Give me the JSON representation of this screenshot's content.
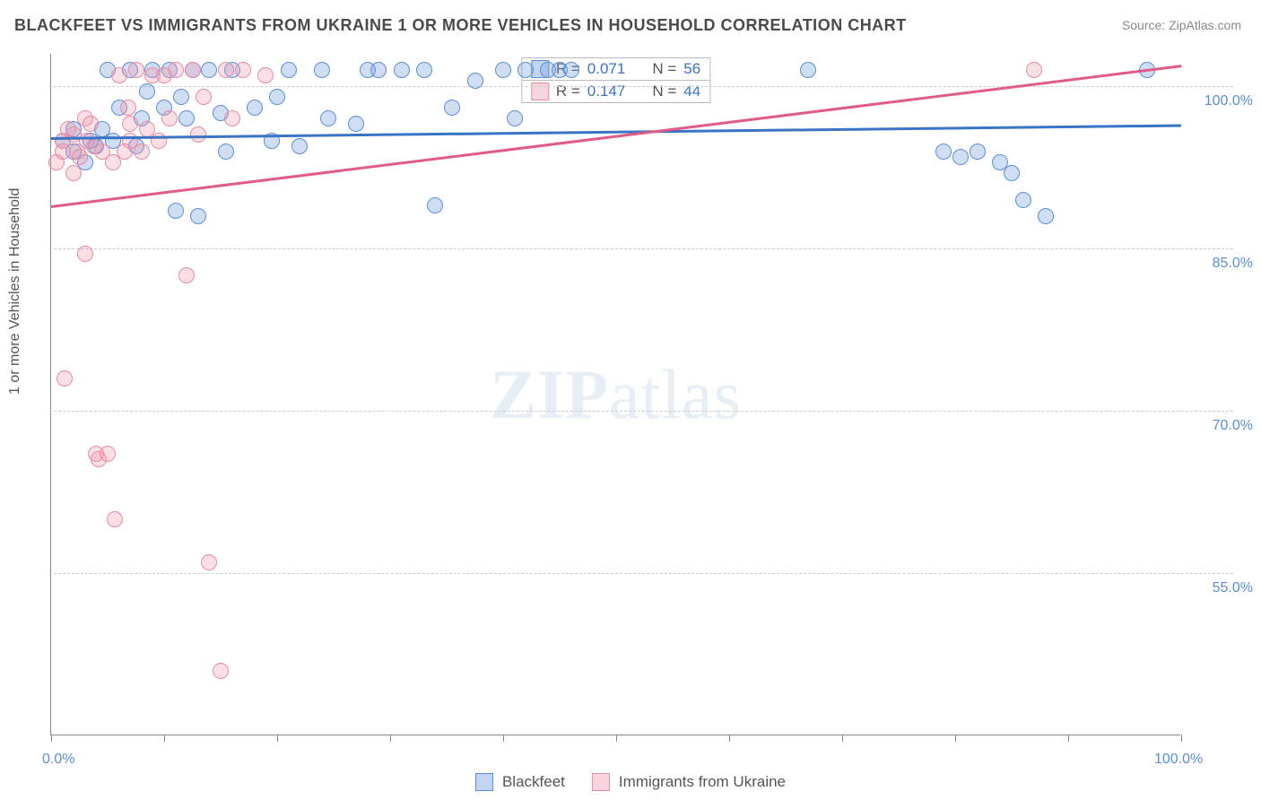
{
  "title": "BLACKFEET VS IMMIGRANTS FROM UKRAINE 1 OR MORE VEHICLES IN HOUSEHOLD CORRELATION CHART",
  "source_label": "Source:",
  "source_value": "ZipAtlas.com",
  "ylabel": "1 or more Vehicles in Household",
  "watermark_bold": "ZIP",
  "watermark_rest": "atlas",
  "chart": {
    "type": "scatter",
    "xlim": [
      0,
      100
    ],
    "ylim": [
      40,
      103
    ],
    "x_ticks": [
      0,
      10,
      20,
      30,
      40,
      50,
      60,
      70,
      80,
      90,
      100
    ],
    "x_tick_labels": {
      "0": "0.0%",
      "100": "100.0%"
    },
    "y_grid": [
      55,
      70,
      85,
      100
    ],
    "y_tick_labels": {
      "55": "55.0%",
      "70": "70.0%",
      "85": "85.0%",
      "100": "100.0%"
    },
    "grid_color": "#cccccc",
    "axis_color": "#888888",
    "background_color": "#ffffff",
    "point_radius": 9,
    "series": [
      {
        "key": "a",
        "label": "Blackfeet",
        "fill": "rgba(120,160,220,0.35)",
        "stroke": "#5a8fd6",
        "R": "0.071",
        "N": "56",
        "trend": {
          "x1": 0,
          "y1": 95.3,
          "x2": 100,
          "y2": 96.5,
          "color": "#3b74c4"
        },
        "points": [
          [
            1,
            95
          ],
          [
            2,
            94
          ],
          [
            2,
            96
          ],
          [
            3,
            93
          ],
          [
            3.5,
            95
          ],
          [
            4,
            94.5
          ],
          [
            4.5,
            96
          ],
          [
            5,
            101.5
          ],
          [
            5.5,
            95
          ],
          [
            6,
            98
          ],
          [
            7,
            101.5
          ],
          [
            7.5,
            94.5
          ],
          [
            8,
            97
          ],
          [
            8.5,
            99.5
          ],
          [
            9,
            101.5
          ],
          [
            10,
            98
          ],
          [
            10.5,
            101.5
          ],
          [
            11,
            88.5
          ],
          [
            11.5,
            99
          ],
          [
            12,
            97
          ],
          [
            12.5,
            101.5
          ],
          [
            13,
            88
          ],
          [
            14,
            101.5
          ],
          [
            15,
            97.5
          ],
          [
            15.5,
            94
          ],
          [
            16,
            101.5
          ],
          [
            18,
            98
          ],
          [
            19.5,
            95
          ],
          [
            20,
            99
          ],
          [
            21,
            101.5
          ],
          [
            22,
            94.5
          ],
          [
            24,
            101.5
          ],
          [
            24.5,
            97
          ],
          [
            27,
            96.5
          ],
          [
            28,
            101.5
          ],
          [
            29,
            101.5
          ],
          [
            31,
            101.5
          ],
          [
            33,
            101.5
          ],
          [
            34,
            89
          ],
          [
            35.5,
            98
          ],
          [
            37.5,
            100.5
          ],
          [
            40,
            101.5
          ],
          [
            41,
            97
          ],
          [
            42,
            101.5
          ],
          [
            44,
            101.5
          ],
          [
            45,
            101.5
          ],
          [
            46,
            101.5
          ],
          [
            67,
            101.5
          ],
          [
            79,
            94
          ],
          [
            80.5,
            93.5
          ],
          [
            82,
            94
          ],
          [
            84,
            93
          ],
          [
            85,
            92
          ],
          [
            86,
            89.5
          ],
          [
            88,
            88
          ],
          [
            97,
            101.5
          ]
        ]
      },
      {
        "key": "b",
        "label": "Immigrants from Ukraine",
        "fill": "rgba(240,150,170,0.30)",
        "stroke": "#e98aa6",
        "R": "0.147",
        "N": "44",
        "trend": {
          "x1": 0,
          "y1": 89,
          "x2": 100,
          "y2": 102,
          "color": "#e25a86"
        },
        "points": [
          [
            0.5,
            93
          ],
          [
            1,
            95
          ],
          [
            1,
            94
          ],
          [
            1.2,
            73
          ],
          [
            1.5,
            96
          ],
          [
            2,
            92
          ],
          [
            2,
            95.5
          ],
          [
            2.3,
            94
          ],
          [
            2.5,
            93.5
          ],
          [
            3,
            97
          ],
          [
            3,
            84.5
          ],
          [
            3.2,
            95
          ],
          [
            3.5,
            96.5
          ],
          [
            4,
            66
          ],
          [
            4.2,
            65.5
          ],
          [
            4.5,
            94
          ],
          [
            5,
            66
          ],
          [
            5.5,
            93
          ],
          [
            5.6,
            60
          ],
          [
            6,
            101
          ],
          [
            6.5,
            94
          ],
          [
            7,
            96.5
          ],
          [
            7,
            95
          ],
          [
            7.5,
            101.5
          ],
          [
            8,
            94
          ],
          [
            8.5,
            96
          ],
          [
            9,
            101
          ],
          [
            9.5,
            95
          ],
          [
            10,
            101
          ],
          [
            10.5,
            97
          ],
          [
            11,
            101.5
          ],
          [
            12,
            82.5
          ],
          [
            12.5,
            101.5
          ],
          [
            13,
            95.5
          ],
          [
            13.5,
            99
          ],
          [
            14,
            56
          ],
          [
            15,
            46
          ],
          [
            15.5,
            101.5
          ],
          [
            16,
            97
          ],
          [
            17,
            101.5
          ],
          [
            19,
            101
          ],
          [
            87,
            101.5
          ],
          [
            3.8,
            94.5
          ],
          [
            6.8,
            98
          ]
        ]
      }
    ]
  },
  "r_legend_labels": {
    "r": "R =",
    "n": "N ="
  },
  "bottom_legend": [
    "Blackfeet",
    "Immigrants from Ukraine"
  ]
}
